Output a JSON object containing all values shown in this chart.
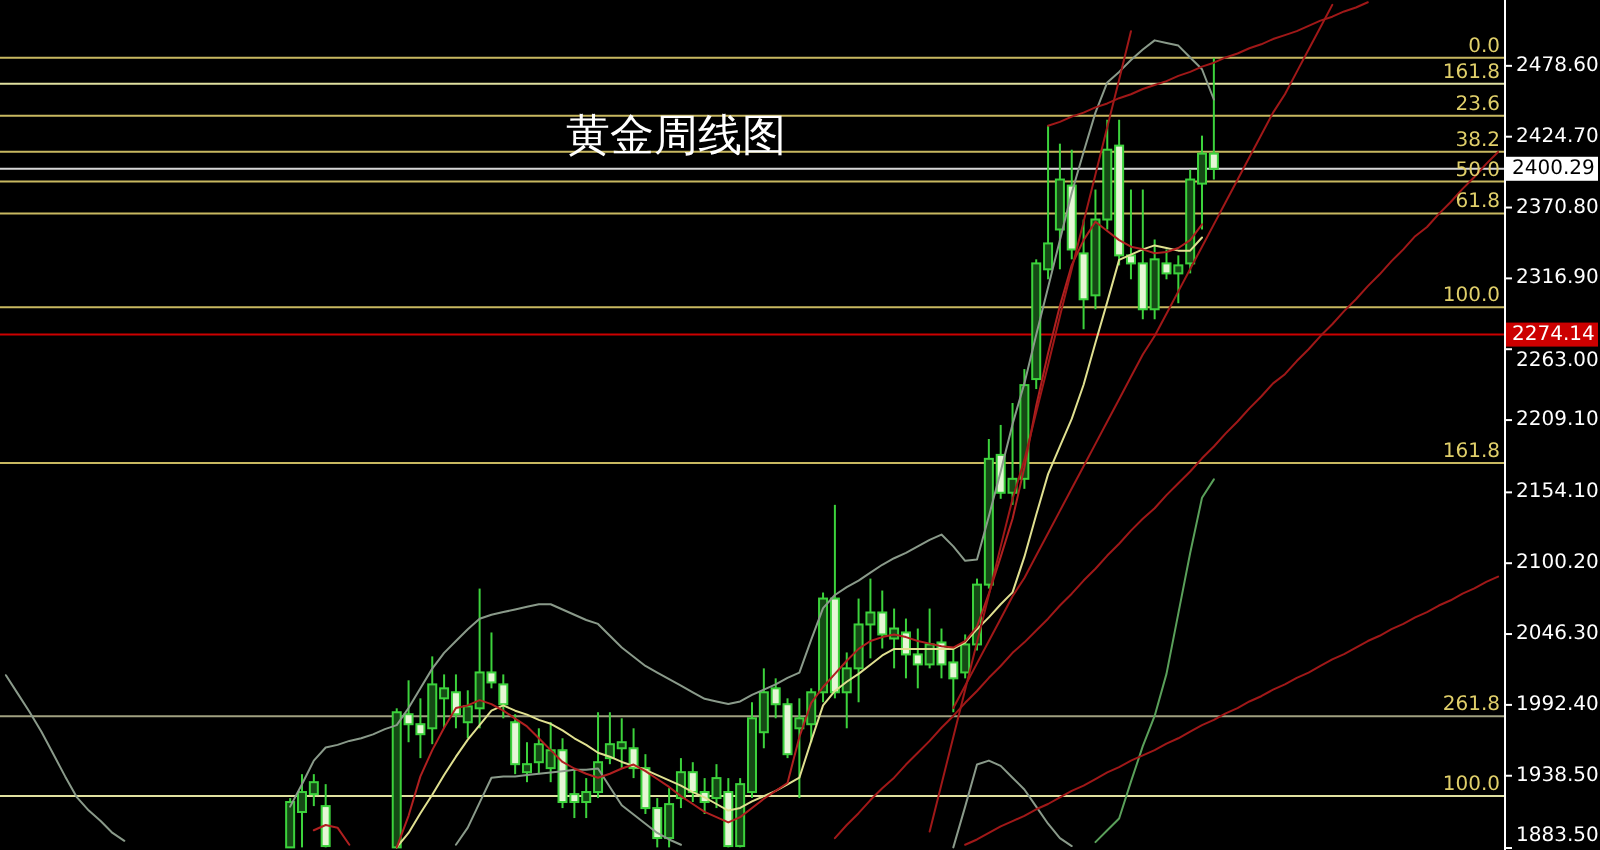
{
  "chart_data": {
    "type": "candlestick",
    "title": "黄金周线图",
    "categories": [
      null,
      null,
      null,
      null,
      null,
      null,
      null,
      null,
      null,
      null,
      null,
      null,
      null,
      null,
      null,
      null,
      null,
      null,
      null,
      null,
      null,
      null,
      null,
      null,
      null,
      null,
      null,
      null,
      null,
      null,
      null,
      null,
      null,
      null,
      null,
      null,
      null,
      null,
      null,
      null,
      null,
      null,
      null,
      null,
      null,
      null,
      null,
      null,
      null,
      null,
      null,
      null,
      null,
      null,
      null,
      null,
      null,
      null,
      null,
      null,
      null,
      null,
      null,
      null,
      null,
      null,
      null,
      null,
      null,
      null,
      null,
      null,
      null,
      null,
      null,
      null,
      null,
      null,
      null,
      null,
      null,
      null,
      null,
      null,
      null,
      null,
      null,
      null,
      null,
      null,
      null,
      null,
      null,
      null,
      null,
      null,
      null,
      null,
      null,
      null,
      null,
      null,
      null,
      null,
      null,
      null,
      null,
      null,
      null,
      null,
      null,
      null,
      null,
      null,
      null,
      null,
      null,
      null,
      null,
      null,
      null,
      null,
      null,
      null,
      null,
      null,
      null
    ],
    "ylim": [
      1882,
      2528.7
    ],
    "tick_labels": "y",
    "yticks": [
      {
        "value": 2478.6,
        "label": "2478.60"
      },
      {
        "value": 2424.7,
        "label": "2424.70"
      },
      {
        "value": 2370.8,
        "label": "2370.80"
      },
      {
        "value": 2316.9,
        "label": "2316.90"
      },
      {
        "value": 2263.0,
        "label": "2263.00"
      },
      {
        "value": 2209.1,
        "label": "2209.10"
      },
      {
        "value": 2154.1,
        "label": "2154.10"
      },
      {
        "value": 2100.2,
        "label": "2100.20"
      },
      {
        "value": 2046.3,
        "label": "2046.30"
      },
      {
        "value": 1992.4,
        "label": "1992.40"
      },
      {
        "value": 1938.5,
        "label": "1938.50"
      },
      {
        "value": 1883.5,
        "label": "1883.50"
      }
    ],
    "ref_lines": [
      {
        "axis": "y",
        "value": 2484.7,
        "color": "#c8b860"
      },
      {
        "axis": "y",
        "value": 2465.0,
        "color": "#e0e0a0"
      },
      {
        "axis": "y",
        "value": 2440.7,
        "color": "#c8b860"
      },
      {
        "axis": "y",
        "value": 2413.3,
        "color": "#c8b860"
      },
      {
        "axis": "y",
        "value": 2390.6,
        "color": "#c8b860"
      },
      {
        "axis": "y",
        "value": 2366.3,
        "color": "#c8b860"
      },
      {
        "axis": "y",
        "value": 2294.9,
        "color": "#c8b860"
      },
      {
        "axis": "y",
        "value": 2176.5,
        "color": "#c8b860"
      },
      {
        "axis": "y",
        "value": 1983.7,
        "color": "#a0a080"
      },
      {
        "axis": "y",
        "value": 1923.0,
        "color": "#e0e0a0"
      },
      {
        "axis": "y",
        "value": 2400.29,
        "label": "2400.29",
        "color": "#d8d8d8"
      },
      {
        "axis": "y",
        "value": 2274.14,
        "label": "2274.14",
        "color": "#cc0000"
      }
    ],
    "annotations": [
      "0.0",
      "161.8",
      "23.6",
      "38.2",
      "50.0",
      "61.8",
      "100.0",
      "161.8",
      "261.8",
      "100.0"
    ],
    "series": [
      {
        "type": "line",
        "color": "#8a9a8a",
        "values": [
          2015,
          2001,
          1987,
          1972,
          1955,
          1938,
          1922,
          1912,
          1904,
          1895,
          1889,
          null,
          null,
          null,
          null,
          null,
          null,
          null,
          null,
          null,
          null,
          null,
          null,
          null,
          null,
          null,
          null,
          null,
          null,
          null,
          null,
          null,
          null,
          null,
          null,
          null,
          null,
          null,
          null,
          null,
          null,
          null,
          null,
          null,
          null,
          null,
          null,
          null,
          null,
          null,
          null,
          null,
          null,
          null,
          null,
          null,
          null,
          null,
          null,
          null,
          null,
          null,
          null,
          null,
          null,
          null,
          null,
          null,
          null,
          null,
          null,
          null,
          null,
          null,
          null,
          null,
          null,
          null,
          null,
          null,
          null,
          null,
          null,
          null,
          null,
          null,
          null,
          null,
          null,
          null,
          null,
          null,
          null,
          null,
          null,
          null,
          null,
          null,
          null,
          null,
          null,
          null,
          null,
          null,
          null,
          null,
          null,
          null,
          null,
          null,
          null,
          null,
          null,
          null,
          null,
          null,
          null,
          null,
          null,
          null,
          null,
          null,
          null,
          null,
          null,
          null,
          null
        ]
      },
      {
        "type": "line",
        "color": "#8a9a8a",
        "values": [
          null,
          null,
          null,
          null,
          null,
          null,
          null,
          null,
          null,
          null,
          null,
          null,
          null,
          null,
          null,
          null,
          null,
          null,
          null,
          null,
          null,
          null,
          null,
          null,
          1915,
          1932,
          1950,
          1960,
          1962,
          1965,
          1967,
          1970,
          1974,
          1977,
          1990,
          2005,
          2020,
          2032,
          2041,
          2050,
          2058,
          2061,
          2063,
          2065,
          2067,
          2069,
          2069,
          2065,
          2061,
          2057,
          2054,
          2045,
          2036,
          2029,
          2022,
          2017,
          2012,
          2007,
          2002,
          1997,
          1995,
          1993,
          1995,
          2000,
          2004,
          2008,
          2013,
          2017,
          2042,
          2066,
          2076,
          2082,
          2087,
          2093,
          2099,
          2104,
          2108,
          2113,
          2118,
          2122,
          2113,
          2102,
          2103,
          2136,
          2170,
          2206,
          2237,
          2274,
          2310,
          2346,
          2382,
          2413,
          2443,
          2466,
          2474,
          2483,
          2491,
          2498,
          2496,
          2494,
          2485,
          2476,
          2453,
          null,
          null,
          null,
          null,
          null,
          null,
          null,
          null,
          null,
          null,
          null,
          null,
          null,
          null,
          null,
          null,
          null,
          null,
          null,
          null,
          null,
          null,
          null,
          null
        ]
      },
      {
        "type": "line",
        "color": "#8a9a8a",
        "values": [
          null,
          null,
          null,
          null,
          null,
          null,
          null,
          null,
          null,
          null,
          null,
          null,
          null,
          null,
          null,
          null,
          null,
          null,
          null,
          null,
          null,
          null,
          null,
          null,
          null,
          null,
          null,
          null,
          null,
          null,
          null,
          null,
          null,
          null,
          null,
          null,
          null,
          null,
          1886,
          1899,
          1918,
          1937,
          1938,
          1938,
          1939,
          1940,
          1941,
          1942,
          1943,
          1943,
          1944,
          1930,
          1916,
          1909,
          1902,
          1895,
          1890,
          1886,
          null,
          null,
          null,
          null,
          null,
          null,
          null,
          null,
          null,
          null,
          null,
          null,
          null,
          null,
          null,
          null,
          null,
          null,
          null,
          null,
          null,
          null,
          1884,
          1915,
          1947,
          1950,
          1946,
          1937,
          1928,
          1915,
          1902,
          1891,
          1885,
          null,
          null,
          null,
          null,
          null,
          null,
          null,
          null,
          null,
          null,
          null,
          null,
          null,
          null,
          null,
          null,
          null,
          null,
          null,
          null,
          null,
          null,
          null,
          null,
          null,
          null,
          null,
          null,
          null,
          null,
          null,
          null,
          null,
          null,
          null,
          null
        ]
      },
      {
        "type": "line",
        "color": "#5aa05a",
        "values": [
          null,
          null,
          null,
          null,
          null,
          null,
          null,
          null,
          null,
          null,
          null,
          null,
          null,
          null,
          null,
          null,
          null,
          null,
          null,
          null,
          null,
          null,
          null,
          null,
          null,
          null,
          null,
          null,
          null,
          null,
          null,
          null,
          null,
          null,
          null,
          null,
          null,
          null,
          null,
          null,
          null,
          null,
          null,
          null,
          null,
          null,
          null,
          null,
          null,
          null,
          null,
          null,
          null,
          null,
          null,
          null,
          null,
          null,
          null,
          null,
          null,
          null,
          null,
          null,
          null,
          null,
          null,
          null,
          null,
          null,
          null,
          null,
          null,
          null,
          null,
          null,
          null,
          null,
          null,
          null,
          null,
          null,
          null,
          null,
          null,
          null,
          null,
          null,
          null,
          null,
          null,
          null,
          1888,
          1897,
          1906,
          1934,
          1961,
          1984,
          2016,
          2062,
          2108,
          2150,
          2164,
          null,
          null,
          null,
          null,
          null,
          null,
          null,
          null,
          null,
          null,
          null,
          null,
          null,
          null,
          null,
          null,
          null,
          null,
          null,
          null,
          null,
          null,
          null,
          null
        ]
      },
      {
        "type": "line",
        "color": "#e0e090",
        "values": [
          null,
          null,
          null,
          null,
          null,
          null,
          null,
          null,
          null,
          null,
          null,
          null,
          null,
          null,
          null,
          null,
          null,
          null,
          null,
          null,
          null,
          null,
          null,
          null,
          null,
          null,
          null,
          null,
          null,
          null,
          null,
          null,
          null,
          1884,
          1895,
          1910,
          1924,
          1939,
          1953,
          1966,
          1977,
          1988,
          1992,
          1988,
          1985,
          1981,
          1978,
          1973,
          1967,
          1962,
          1956,
          1953,
          1949,
          1946,
          1943,
          1939,
          1935,
          1931,
          1926,
          1922,
          1917,
          1912,
          1914,
          1919,
          1923,
          1927,
          1932,
          1937,
          1965,
          1992,
          2003,
          2010,
          2016,
          2023,
          2030,
          2035,
          2035,
          2035,
          2035,
          2035,
          2035,
          2040,
          2050,
          2059,
          2069,
          2078,
          2105,
          2137,
          2168,
          2189,
          2210,
          2236,
          2268,
          2299,
          2331,
          2335,
          2339,
          2342,
          2340,
          2338,
          2338,
          2348,
          null,
          null,
          null,
          null,
          null,
          null,
          null,
          null,
          null,
          null,
          null,
          null,
          null,
          null,
          null,
          null,
          null,
          null,
          null,
          null,
          null,
          null,
          null,
          null,
          null
        ]
      },
      {
        "type": "line",
        "color": "#b02020",
        "values": [
          null,
          null,
          null,
          null,
          null,
          null,
          null,
          null,
          null,
          null,
          null,
          null,
          null,
          null,
          null,
          null,
          null,
          null,
          null,
          null,
          null,
          null,
          null,
          null,
          null,
          null,
          1897,
          1901,
          1899,
          1886,
          null,
          null,
          null,
          1884,
          1908,
          1938,
          1958,
          1975,
          1990,
          1992,
          1996,
          1993,
          1988,
          1982,
          1976,
          1967,
          1958,
          1949,
          1944,
          1940,
          1937,
          1940,
          1944,
          1947,
          1942,
          1936,
          1930,
          1923,
          1917,
          1911,
          1907,
          1903,
          1907,
          1914,
          1921,
          1927,
          1933,
          1968,
          1994,
          2006,
          2016,
          2026,
          2035,
          2041,
          2044,
          2046,
          2044,
          2041,
          2039,
          2037,
          2036,
          2041,
          2052,
          2077,
          2105,
          2134,
          2173,
          2220,
          2260,
          2296,
          2327,
          2346,
          2360,
          2353,
          2346,
          2341,
          2339,
          2336,
          2337,
          2340,
          2346,
          2358,
          null,
          null,
          null,
          null,
          null,
          null,
          null,
          null,
          null,
          null,
          null,
          null,
          null,
          null,
          null,
          null,
          null,
          null,
          null,
          null,
          null,
          null,
          null,
          null,
          null
        ]
      },
      {
        "type": "line",
        "color": "#a01818",
        "values": [
          null,
          null,
          null,
          null,
          null,
          null,
          null,
          null,
          null,
          null,
          null,
          null,
          null,
          null,
          null,
          null,
          null,
          null,
          null,
          null,
          null,
          null,
          null,
          null,
          null,
          null,
          null,
          null,
          null,
          null,
          null,
          null,
          null,
          null,
          null,
          null,
          null,
          null,
          null,
          null,
          null,
          null,
          null,
          null,
          null,
          null,
          null,
          null,
          null,
          null,
          null,
          null,
          null,
          null,
          null,
          null,
          null,
          null,
          null,
          null,
          null,
          null,
          null,
          null,
          null,
          null,
          null,
          null,
          null,
          null,
          null,
          null,
          null,
          null,
          null,
          null,
          null,
          null,
          1896,
          1932,
          1968,
          2004,
          2040,
          2076,
          2113,
          2149,
          2179,
          2215,
          2251,
          2288,
          2324,
          2360,
          2396,
          2432,
          2468,
          2505,
          null,
          null,
          null,
          null,
          null,
          null,
          null,
          null,
          null,
          null,
          null,
          null,
          null,
          null,
          null,
          null,
          null,
          null,
          null,
          null,
          null,
          null,
          null,
          null,
          null,
          null,
          null,
          null,
          null,
          null,
          null
        ]
      },
      {
        "type": "line",
        "color": "#a01818",
        "values": [
          null,
          null,
          null,
          null,
          null,
          null,
          null,
          null,
          null,
          null,
          null,
          null,
          null,
          null,
          null,
          null,
          null,
          null,
          null,
          null,
          null,
          null,
          null,
          null,
          null,
          null,
          null,
          null,
          null,
          null,
          null,
          null,
          null,
          null,
          null,
          null,
          null,
          null,
          null,
          null,
          null,
          null,
          null,
          null,
          null,
          null,
          null,
          null,
          null,
          null,
          null,
          null,
          null,
          null,
          null,
          null,
          null,
          null,
          null,
          null,
          null,
          null,
          null,
          null,
          null,
          null,
          null,
          null,
          null,
          null,
          null,
          null,
          null,
          null,
          null,
          null,
          null,
          null,
          null,
          null,
          1990,
          2007,
          2024,
          2041,
          2058,
          2075,
          2089,
          2106,
          2123,
          2140,
          2157,
          2174,
          2191,
          2208,
          2225,
          2242,
          2259,
          2273,
          2290,
          2307,
          2324,
          2341,
          2358,
          2375,
          2392,
          2409,
          2426,
          2443,
          2457,
          2474,
          2491,
          2508,
          2525,
          null,
          null,
          null,
          null,
          null,
          null,
          null,
          null,
          null,
          null,
          null,
          null,
          null,
          null
        ]
      },
      {
        "type": "line",
        "color": "#a01818",
        "values": [
          null,
          null,
          null,
          null,
          null,
          null,
          null,
          null,
          null,
          null,
          null,
          null,
          null,
          null,
          null,
          null,
          null,
          null,
          null,
          null,
          null,
          null,
          null,
          null,
          null,
          null,
          null,
          null,
          null,
          null,
          null,
          null,
          null,
          null,
          null,
          null,
          null,
          null,
          null,
          null,
          null,
          null,
          null,
          null,
          null,
          null,
          null,
          null,
          null,
          null,
          null,
          null,
          null,
          null,
          null,
          null,
          null,
          null,
          null,
          null,
          null,
          null,
          null,
          null,
          null,
          null,
          null,
          null,
          null,
          null,
          1891,
          1901,
          1910,
          1920,
          1929,
          1937,
          1947,
          1956,
          1965,
          1975,
          1984,
          1994,
          2003,
          2013,
          2022,
          2032,
          2040,
          2049,
          2058,
          2068,
          2077,
          2087,
          2096,
          2106,
          2115,
          2125,
          2134,
          2142,
          2152,
          2161,
          2170,
          2180,
          2189,
          2199,
          2208,
          2218,
          2227,
          2237,
          2244,
          2254,
          2263,
          2273,
          2282,
          2292,
          2301,
          2311,
          2320,
          2330,
          2339,
          2349,
          2356,
          2366,
          2375,
          2385,
          2394,
          2404,
          2413
        ]
      },
      {
        "type": "line",
        "color": "#a01818",
        "values": [
          null,
          null,
          null,
          null,
          null,
          null,
          null,
          null,
          null,
          null,
          null,
          null,
          null,
          null,
          null,
          null,
          null,
          null,
          null,
          null,
          null,
          null,
          null,
          null,
          null,
          null,
          null,
          null,
          null,
          null,
          null,
          null,
          null,
          null,
          null,
          null,
          null,
          null,
          null,
          null,
          null,
          null,
          null,
          null,
          null,
          null,
          null,
          null,
          null,
          null,
          null,
          null,
          null,
          null,
          null,
          null,
          null,
          null,
          null,
          null,
          null,
          null,
          null,
          null,
          null,
          null,
          null,
          null,
          null,
          null,
          null,
          null,
          null,
          null,
          null,
          null,
          null,
          null,
          null,
          null,
          null,
          1886,
          1890,
          1895,
          1900,
          1904,
          1908,
          1913,
          1917,
          1922,
          1927,
          1931,
          1936,
          1941,
          1945,
          1950,
          1954,
          1958,
          1963,
          1967,
          1972,
          1977,
          1981,
          1986,
          1990,
          1995,
          1999,
          2004,
          2008,
          2013,
          2017,
          2022,
          2027,
          2031,
          2036,
          2041,
          2045,
          2050,
          2054,
          2059,
          2063,
          2068,
          2072,
          2077,
          2081,
          2086,
          2090
        ]
      },
      {
        "type": "line",
        "color": "#a01818",
        "values": [
          null,
          null,
          null,
          null,
          null,
          null,
          null,
          null,
          null,
          null,
          null,
          null,
          null,
          null,
          null,
          null,
          null,
          null,
          null,
          null,
          null,
          null,
          null,
          null,
          null,
          null,
          null,
          null,
          null,
          null,
          null,
          null,
          null,
          null,
          null,
          null,
          null,
          null,
          null,
          null,
          null,
          null,
          null,
          null,
          null,
          null,
          null,
          null,
          null,
          null,
          null,
          null,
          null,
          null,
          null,
          null,
          null,
          null,
          null,
          null,
          null,
          null,
          null,
          null,
          null,
          null,
          null,
          null,
          null,
          null,
          null,
          null,
          null,
          null,
          null,
          null,
          null,
          null,
          null,
          null,
          null,
          null,
          null,
          null,
          null,
          null,
          null,
          null,
          2433,
          2436,
          2440,
          2443,
          2447,
          2450,
          2454,
          2457,
          2461,
          2464,
          2467,
          2471,
          2474,
          2478,
          2481,
          2485,
          2488,
          2492,
          2495,
          2499,
          2502,
          2505,
          2509,
          2513,
          2516,
          2520,
          2523,
          2527,
          null,
          null,
          null,
          null,
          null,
          null,
          null,
          null,
          null,
          null,
          null
        ]
      },
      {
        "color": "#3cd23c",
        "ohlc": [
          null,
          null,
          null,
          null,
          null,
          null,
          null,
          null,
          null,
          null,
          null,
          null,
          null,
          null,
          null,
          null,
          null,
          null,
          null,
          null,
          null,
          null,
          null,
          null,
          [
            1884,
            1921.5,
            1884,
            1918.5
          ],
          [
            1910.9,
            1939.7,
            1884,
            1926.1
          ],
          [
            1924.5,
            1939.7,
            1915.4,
            1933.6
          ],
          [
            1915.4,
            1932.1,
            1884,
            1885
          ],
          null,
          null,
          null,
          null,
          null,
          [
            1884,
            1989.8,
            1884,
            1986.8
          ],
          [
            1985.3,
            2011.1,
            1964.0,
            1977.7
          ],
          [
            1977.7,
            1997.4,
            1951.9,
            1970.1
          ],
          [
            1974.6,
            2029.3,
            1962.5,
            2008.0
          ],
          [
            1997.4,
            2015.6,
            1974.6,
            2005.0
          ],
          [
            2002.0,
            2015.6,
            1974.6,
            1985.3
          ],
          [
            1979.2,
            2003.5,
            1967.0,
            1991.3
          ],
          [
            1989.8,
            2080.9,
            1974.6,
            2017.1
          ],
          [
            2017.1,
            2047.5,
            2005.0,
            2009.5
          ],
          [
            2008.0,
            2015.6,
            1982.2,
            1992.9
          ],
          [
            1979.2,
            1985.3,
            1939.7,
            1947.3
          ],
          [
            1941.2,
            1964.0,
            1933.6,
            1947.3
          ],
          [
            1948.8,
            1974.6,
            1939.7,
            1962.5
          ],
          [
            1944.3,
            1979.2,
            1933.6,
            1957.9
          ],
          [
            1957.9,
            1967.0,
            1913.9,
            1918.5
          ],
          [
            1924.5,
            1944.3,
            1906.3,
            1918.5
          ],
          [
            1918.5,
            1936.7,
            1906.3,
            1926.1
          ],
          [
            1926.1,
            1986.8,
            1921.5,
            1948.8
          ],
          [
            1951.9,
            1986.8,
            1947.3,
            1962.5
          ],
          [
            1959.4,
            1982.2,
            1944.3,
            1964.0
          ],
          [
            1959.4,
            1974.6,
            1936.7,
            1944.3
          ],
          [
            1944.3,
            1954.9,
            1909.4,
            1913.9
          ],
          [
            1913.9,
            1921.5,
            1884,
            1891.1
          ],
          [
            1891.1,
            1929.1,
            1884,
            1916.9
          ],
          [
            1921.5,
            1951.9,
            1913.9,
            1941.2
          ],
          [
            1941.2,
            1948.8,
            1918.5,
            1926.1
          ],
          [
            1926.1,
            1936.7,
            1909.4,
            1918.5
          ],
          [
            1921.5,
            1947.3,
            1913.9,
            1936.7
          ],
          [
            1926.1,
            1936.7,
            1884,
            1885
          ],
          [
            1885,
            1936.7,
            1884,
            1932.1
          ],
          [
            1926.1,
            1994.4,
            1921.5,
            1982.2
          ],
          [
            1971.6,
            2020.2,
            1959.4,
            2002.0
          ],
          [
            2005.0,
            2012.6,
            1982.2,
            1992.9
          ],
          [
            1992.9,
            1997.4,
            1951.9,
            1954.9
          ],
          [
            1974.6,
            1997.4,
            1921.5,
            1982.2
          ],
          [
            1977.7,
            2005.0,
            1964.0,
            2002.0
          ],
          [
            2002.0,
            2077.9,
            1994.4,
            2073.3
          ],
          [
            2073.3,
            2144.6,
            1997.4,
            2002.0
          ],
          [
            2002.0,
            2032.3,
            1974.6,
            2020.2
          ],
          [
            2020.2,
            2073.3,
            1994.4,
            2053.6
          ],
          [
            2053.6,
            2088.5,
            2027.8,
            2062.7
          ],
          [
            2062.7,
            2079.4,
            2035.3,
            2046.0
          ],
          [
            2042.9,
            2065.7,
            2020.2,
            2050.5
          ],
          [
            2047.5,
            2058.1,
            2012.6,
            2030.8
          ],
          [
            2030.8,
            2050.5,
            2005.0,
            2023.2
          ],
          [
            2023.2,
            2065.7,
            2020.2,
            2038.4
          ],
          [
            2039.9,
            2050.5,
            2012.6,
            2023.2
          ],
          [
            2024.7,
            2035.3,
            1986.8,
            2012.6
          ],
          [
            2017.1,
            2046.0,
            2012.6,
            2038.4
          ],
          [
            2038.4,
            2088.5,
            2033.8,
            2083.9
          ],
          [
            2083.9,
            2194.7,
            2080.9,
            2179.6
          ],
          [
            2182.6,
            2205.4,
            2149.2,
            2153.8
          ],
          [
            2153.8,
            2222.1,
            2144.6,
            2164.4
          ],
          [
            2164.4,
            2247.9,
            2156.8,
            2235.7
          ],
          [
            2240.3,
            2331.4,
            2232.7,
            2328.3
          ],
          [
            2323.8,
            2433.1,
            2316.2,
            2343.5
          ],
          [
            2354.1,
            2419.4,
            2323.8,
            2392.1
          ],
          [
            2387.5,
            2414.8,
            2331.4,
            2338.9
          ],
          [
            2335.9,
            2361.7,
            2278.2,
            2301.0
          ],
          [
            2304.0,
            2384.5,
            2293.4,
            2361.7
          ],
          [
            2361.7,
            2437.6,
            2354.1,
            2414.8
          ],
          [
            2417.9,
            2437.6,
            2326.8,
            2334.4
          ],
          [
            2334.4,
            2384.5,
            2316.2,
            2328.3
          ],
          [
            2328.3,
            2384.5,
            2285.8,
            2293.4
          ],
          [
            2293.4,
            2346.5,
            2285.8,
            2331.4
          ],
          [
            2328.3,
            2338.9,
            2316.2,
            2320.7
          ],
          [
            2320.7,
            2334.4,
            2298.0,
            2326.8
          ],
          [
            2328.3,
            2399.7,
            2320.7,
            2392.1
          ],
          [
            2389.0,
            2425.5,
            2354.1,
            2411.8
          ],
          [
            2411.8,
            2484.7,
            2392.1,
            2400.29
          ],
          null,
          null,
          null,
          null,
          null,
          null,
          null,
          null,
          null,
          null,
          null,
          null,
          null,
          null,
          null,
          null,
          null,
          null,
          null,
          null,
          null,
          null,
          null,
          null
        ]
      }
    ]
  }
}
